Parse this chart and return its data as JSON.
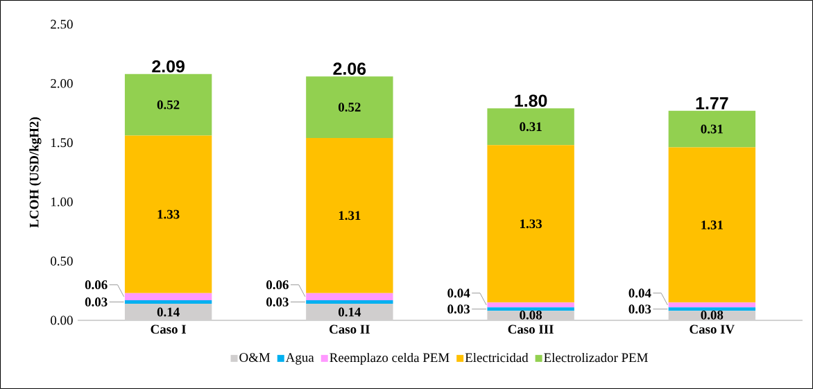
{
  "chart_data": {
    "type": "bar",
    "stacked": true,
    "ylabel": "LCOH (USD/kgH2)",
    "categories": [
      "Caso I",
      "Caso II",
      "Caso III",
      "Caso IV"
    ],
    "series": [
      {
        "name": "O&M",
        "color": "#d0cece",
        "values": [
          0.14,
          0.14,
          0.08,
          0.08
        ]
      },
      {
        "name": "Agua",
        "color": "#00b0f0",
        "values": [
          0.03,
          0.03,
          0.03,
          0.03
        ]
      },
      {
        "name": "Reemplazo celda PEM",
        "color": "#ff99ff",
        "values": [
          0.06,
          0.06,
          0.04,
          0.04
        ]
      },
      {
        "name": "Electricidad",
        "color": "#ffc000",
        "values": [
          1.33,
          1.31,
          1.33,
          1.31
        ]
      },
      {
        "name": "Electrolizador PEM",
        "color": "#92d050",
        "values": [
          0.52,
          0.52,
          0.31,
          0.31
        ]
      }
    ],
    "totals": [
      "2.09",
      "2.06",
      "1.80",
      "1.77"
    ],
    "data_labels": true,
    "ylim": [
      0,
      2.5
    ],
    "yticks": [
      {
        "value": 0,
        "label": "0.00"
      },
      {
        "value": 0.5,
        "label": "0.50"
      },
      {
        "value": 1,
        "label": "1.00"
      },
      {
        "value": 1.5,
        "label": "1.50"
      },
      {
        "value": 2,
        "label": "2.00"
      },
      {
        "value": 2.5,
        "label": "2.50"
      }
    ],
    "legend": "bottom"
  }
}
